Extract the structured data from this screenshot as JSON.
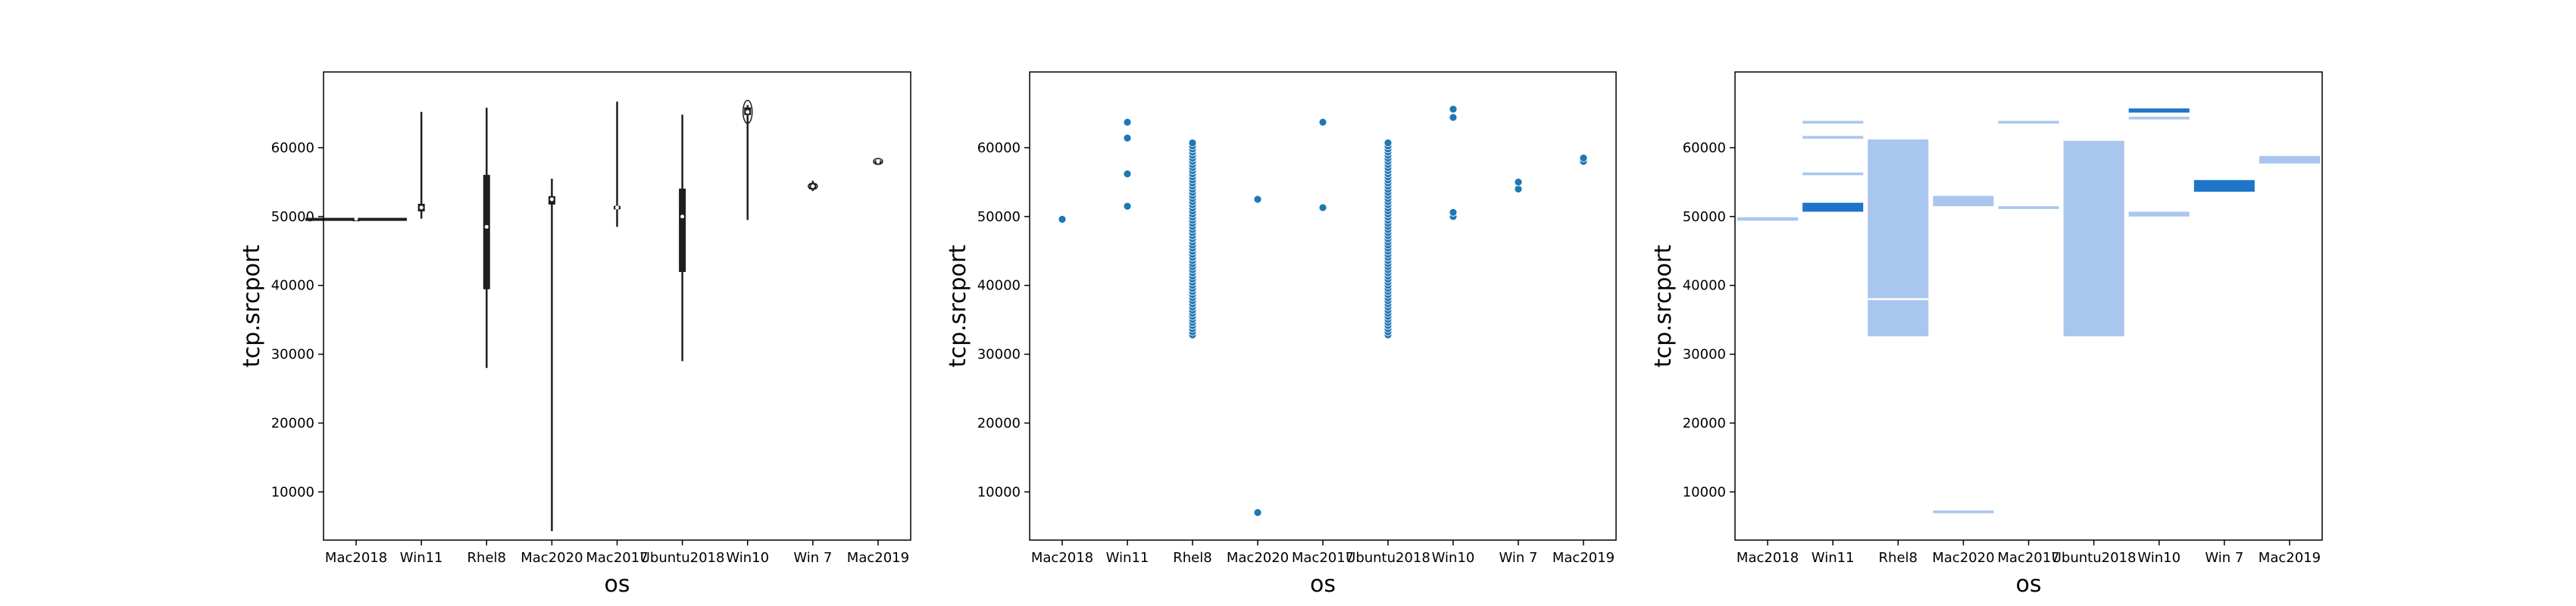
{
  "chart_data": [
    {
      "type": "violin",
      "xlabel": "os",
      "ylabel": "tcp.srcport",
      "categories": [
        "Mac2018",
        "Win11",
        "Rhel8",
        "Mac2020",
        "Mac2017",
        "Ubuntu2018",
        "Win10",
        "Win 7",
        "Mac2019"
      ],
      "yticks": [
        10000,
        20000,
        30000,
        40000,
        50000,
        60000
      ],
      "ytick_labels": [
        "10000",
        "20000",
        "30000",
        "40000",
        "50000",
        "60000"
      ],
      "ylim": [
        3000,
        71000
      ],
      "color": "#1f1f1f",
      "groups": [
        {
          "min": 49500,
          "q1": 49600,
          "median": 49650,
          "q3": 49700,
          "max": 49800
        },
        {
          "min": 49700,
          "q1": 50800,
          "median": 51300,
          "q3": 51800,
          "max": 65200
        },
        {
          "min": 28000,
          "q1": 39500,
          "median": 48500,
          "q3": 56000,
          "max": 65800
        },
        {
          "min": 4300,
          "q1": 51800,
          "median": 52500,
          "q3": 52900,
          "max": 55500
        },
        {
          "min": 48500,
          "q1": 51100,
          "median": 51300,
          "q3": 51500,
          "max": 66700
        },
        {
          "min": 29000,
          "q1": 42000,
          "median": 50000,
          "q3": 54000,
          "max": 64800
        },
        {
          "min": 49500,
          "q1": 64800,
          "median": 65200,
          "q3": 65800,
          "max": 66200
        },
        {
          "min": 53700,
          "q1": 54000,
          "median": 54400,
          "q3": 54800,
          "max": 55200
        },
        {
          "min": 57700,
          "q1": 57800,
          "median": 58000,
          "q3": 58100,
          "max": 58300
        }
      ]
    },
    {
      "type": "scatter",
      "xlabel": "os",
      "ylabel": "tcp.srcport",
      "categories": [
        "Mac2018",
        "Win11",
        "Rhel8",
        "Mac2020",
        "Mac2017",
        "Ubuntu2018",
        "Win10",
        "Win 7",
        "Mac2019"
      ],
      "yticks": [
        10000,
        20000,
        30000,
        40000,
        50000,
        60000
      ],
      "ytick_labels": [
        "10000",
        "20000",
        "30000",
        "40000",
        "50000",
        "60000"
      ],
      "ylim": [
        3000,
        71000
      ],
      "color": "#1f77b4",
      "points": [
        {
          "category": "Mac2018",
          "y": 49600
        },
        {
          "category": "Win11",
          "y": 51500
        },
        {
          "category": "Win11",
          "y": 56200
        },
        {
          "category": "Win11",
          "y": 61400
        },
        {
          "category": "Win11",
          "y": 63700
        },
        {
          "category": "Mac2020",
          "y": 7000
        },
        {
          "category": "Mac2020",
          "y": 52500
        },
        {
          "category": "Mac2017",
          "y": 51300
        },
        {
          "category": "Mac2017",
          "y": 63700
        },
        {
          "category": "Win10",
          "y": 50000
        },
        {
          "category": "Win10",
          "y": 50600
        },
        {
          "category": "Win10",
          "y": 64400
        },
        {
          "category": "Win10",
          "y": 65600
        },
        {
          "category": "Win 7",
          "y": 54000
        },
        {
          "category": "Win 7",
          "y": 55000
        },
        {
          "category": "Mac2019",
          "y": 58000
        },
        {
          "category": "Mac2019",
          "y": 58500
        }
      ],
      "dense_ranges": [
        {
          "category": "Rhel8",
          "y_from": 32800,
          "y_to": 61000
        },
        {
          "category": "Ubuntu2018",
          "y_from": 32800,
          "y_to": 60700
        }
      ]
    },
    {
      "type": "histogram",
      "xlabel": "os",
      "ylabel": "tcp.srcport",
      "categories": [
        "Mac2018",
        "Win11",
        "Rhel8",
        "Mac2020",
        "Mac2017",
        "Ubuntu2018",
        "Win10",
        "Win 7",
        "Mac2019"
      ],
      "yticks": [
        10000,
        20000,
        30000,
        40000,
        50000,
        60000
      ],
      "ytick_labels": [
        "10000",
        "20000",
        "30000",
        "40000",
        "50000",
        "60000"
      ],
      "ylim": [
        3000,
        71000
      ],
      "colors": {
        "light": "#a9c6ee",
        "dark": "#1e74c9"
      },
      "groups": [
        {
          "category": "Mac2018",
          "bins": [
            {
              "from": 49400,
              "to": 49900,
              "shade": "light"
            }
          ]
        },
        {
          "category": "Win11",
          "bins": [
            {
              "from": 63500,
              "to": 63900,
              "shade": "light"
            },
            {
              "from": 61300,
              "to": 61700,
              "shade": "light"
            },
            {
              "from": 56000,
              "to": 56400,
              "shade": "light"
            },
            {
              "from": 50700,
              "to": 52000,
              "shade": "dark"
            }
          ]
        },
        {
          "category": "Rhel8",
          "bins": [
            {
              "from": 32600,
              "to": 61200,
              "shade": "light"
            }
          ]
        },
        {
          "category": "Mac2020",
          "bins": [
            {
              "from": 51500,
              "to": 53000,
              "shade": "light"
            },
            {
              "from": 6900,
              "to": 7300,
              "shade": "light"
            }
          ]
        },
        {
          "category": "Mac2017",
          "bins": [
            {
              "from": 63500,
              "to": 63900,
              "shade": "light"
            },
            {
              "from": 51100,
              "to": 51500,
              "shade": "light"
            }
          ]
        },
        {
          "category": "Ubuntu2018",
          "bins": [
            {
              "from": 32600,
              "to": 61000,
              "shade": "light"
            }
          ]
        },
        {
          "category": "Win10",
          "bins": [
            {
              "from": 65100,
              "to": 65700,
              "shade": "dark"
            },
            {
              "from": 64100,
              "to": 64500,
              "shade": "light"
            },
            {
              "from": 50000,
              "to": 50700,
              "shade": "light"
            }
          ]
        },
        {
          "category": "Win 7",
          "bins": [
            {
              "from": 53600,
              "to": 55300,
              "shade": "dark"
            }
          ]
        },
        {
          "category": "Mac2019",
          "bins": [
            {
              "from": 57700,
              "to": 58800,
              "shade": "light"
            }
          ]
        }
      ]
    }
  ]
}
